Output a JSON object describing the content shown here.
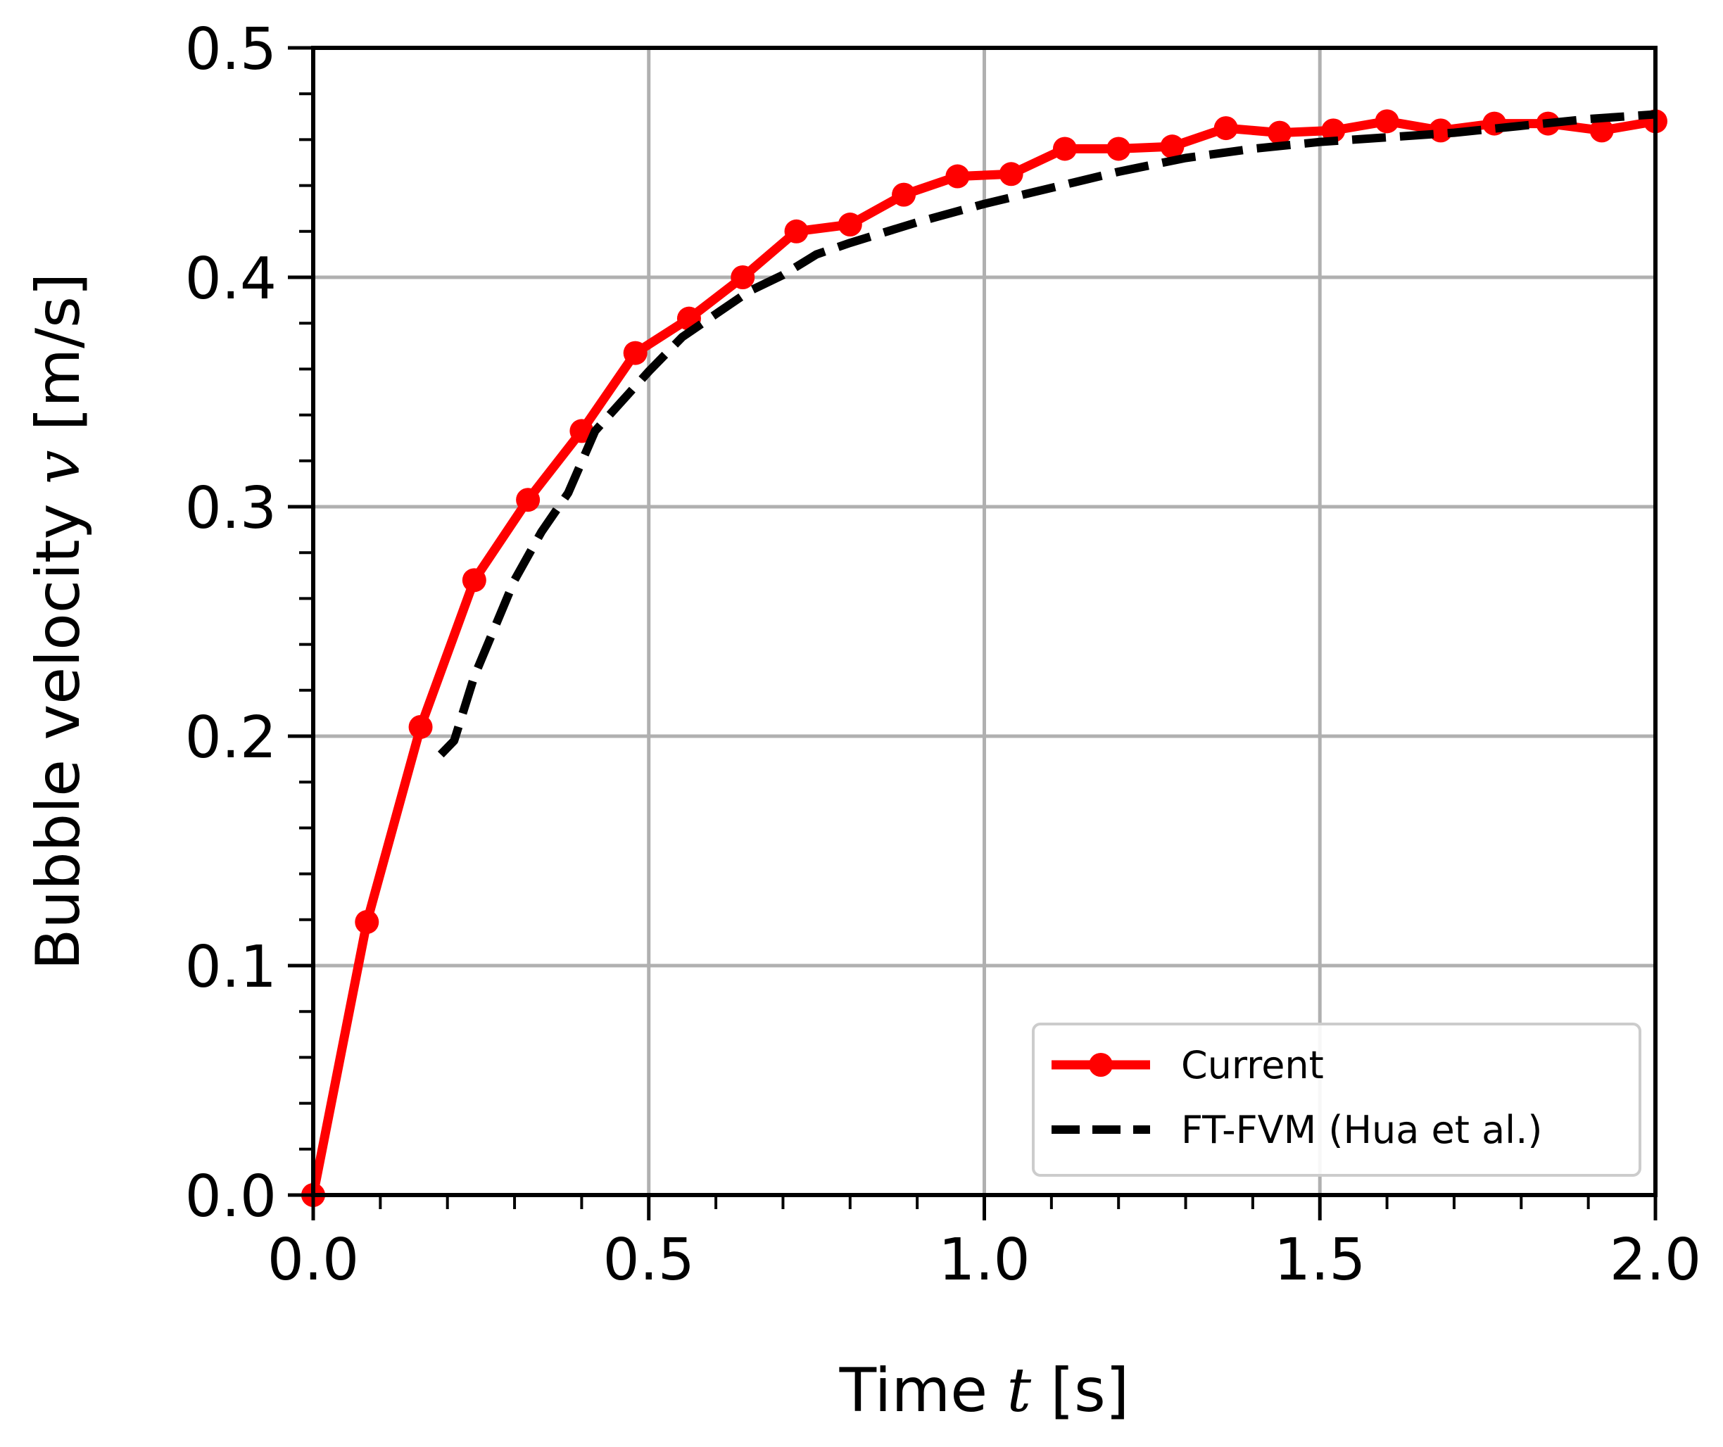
{
  "chart_data": {
    "type": "line",
    "title": "",
    "xlabel": "Time",
    "xlabel_var": "t",
    "xlabel_unit": "[s]",
    "ylabel": "Bubble velocity",
    "ylabel_var": "v",
    "ylabel_unit": "[m/s]",
    "xlim": [
      0.0,
      2.0
    ],
    "ylim": [
      0.0,
      0.5
    ],
    "xticks": [
      "0.0",
      "0.5",
      "1.0",
      "1.5",
      "2.0"
    ],
    "yticks": [
      "0.0",
      "0.1",
      "0.2",
      "0.3",
      "0.4",
      "0.5"
    ],
    "grid": true,
    "legend_position": "lower-right",
    "series": [
      {
        "name": "Current",
        "color": "#ff0000",
        "style": "solid-with-markers",
        "x": [
          0.0,
          0.08,
          0.16,
          0.24,
          0.32,
          0.4,
          0.48,
          0.56,
          0.64,
          0.72,
          0.8,
          0.88,
          0.96,
          1.04,
          1.12,
          1.2,
          1.28,
          1.36,
          1.44,
          1.52,
          1.6,
          1.68,
          1.76,
          1.84,
          1.92,
          2.0
        ],
        "y": [
          0.0,
          0.119,
          0.204,
          0.268,
          0.303,
          0.333,
          0.367,
          0.382,
          0.4,
          0.42,
          0.423,
          0.436,
          0.444,
          0.445,
          0.456,
          0.456,
          0.457,
          0.465,
          0.463,
          0.464,
          0.468,
          0.464,
          0.467,
          0.467,
          0.464,
          0.468
        ]
      },
      {
        "name": "FT-FVM (Hua et al.)",
        "color": "#000000",
        "style": "dashed",
        "x": [
          0.19,
          0.21,
          0.24,
          0.27,
          0.3,
          0.34,
          0.38,
          0.42,
          0.46,
          0.5,
          0.55,
          0.6,
          0.65,
          0.7,
          0.75,
          0.8,
          0.9,
          1.0,
          1.1,
          1.2,
          1.3,
          1.4,
          1.5,
          1.6,
          1.7,
          1.8,
          1.9,
          2.0
        ],
        "y": [
          0.192,
          0.198,
          0.226,
          0.247,
          0.268,
          0.289,
          0.306,
          0.333,
          0.346,
          0.359,
          0.374,
          0.384,
          0.394,
          0.401,
          0.41,
          0.415,
          0.424,
          0.432,
          0.439,
          0.446,
          0.452,
          0.456,
          0.459,
          0.461,
          0.463,
          0.466,
          0.469,
          0.471
        ]
      }
    ]
  }
}
